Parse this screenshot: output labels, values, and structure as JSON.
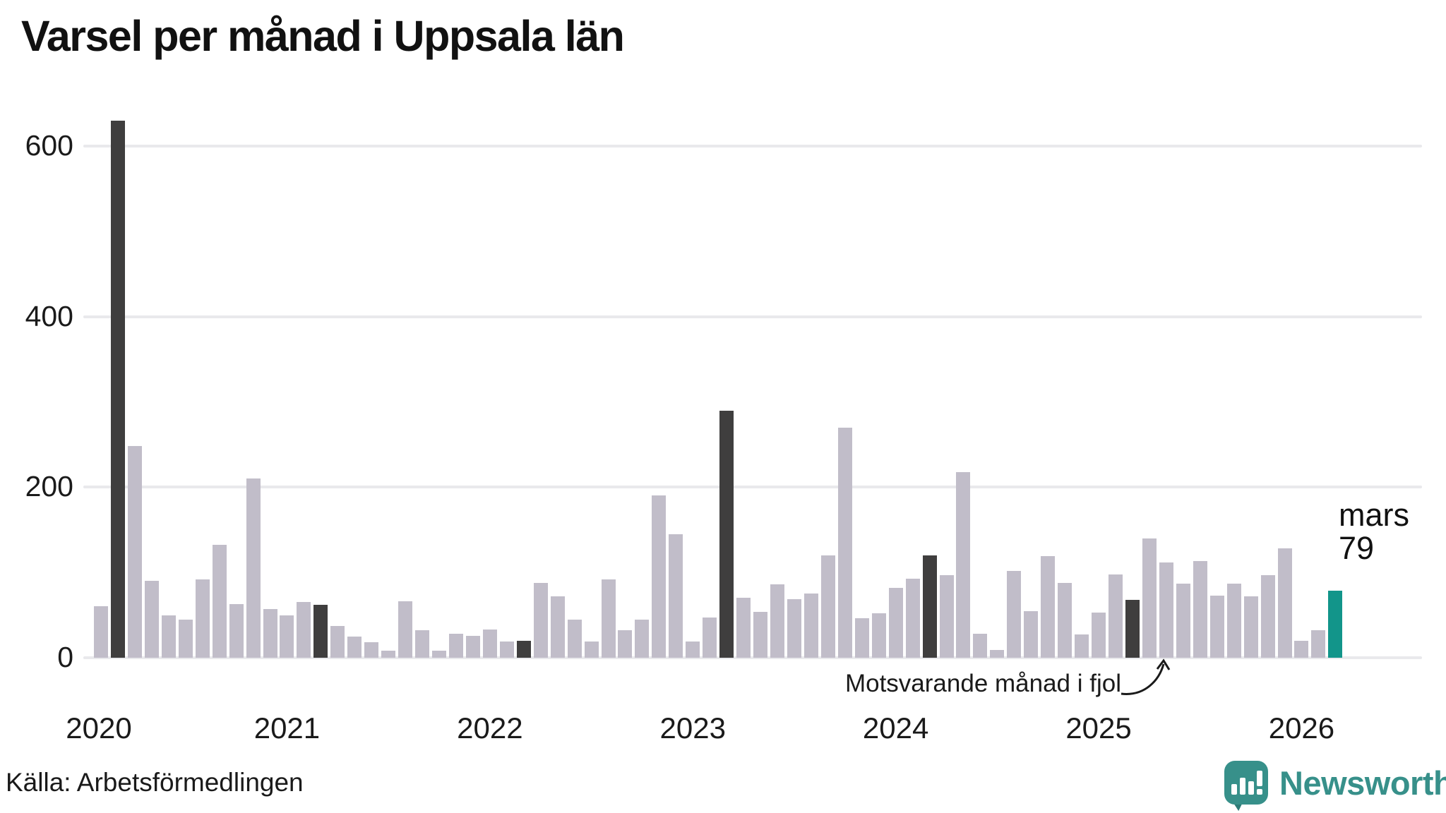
{
  "title": "Varsel per månad i Uppsala län",
  "annotation": {
    "text": "Motsvarande månad i fjol",
    "points_to": "mars 2025"
  },
  "current_point_label": {
    "line1": "mars",
    "line2": "79"
  },
  "footer": {
    "source": "Källa: Arbetsförmedlingen",
    "brand": "Newsworthy"
  },
  "colors": {
    "bar_default": "#c1bdc9",
    "bar_last_year_month": "#3f3e3e",
    "bar_current": "#12958a",
    "gridline": "#e9e9ec",
    "logo_teal": "#37908a",
    "text": "#1a1a1a"
  },
  "chart_data": {
    "type": "bar",
    "title": "Varsel per månad i Uppsala län",
    "xlabel": "",
    "ylabel": "",
    "ylim": [
      0,
      650
    ],
    "yticks": [
      0,
      200,
      400,
      600
    ],
    "grid": true,
    "legend_position": "none",
    "year_ticks": [
      "2020",
      "2021",
      "2022",
      "2023",
      "2024",
      "2025",
      "2026"
    ],
    "series_note": "role: base = ordinary month, fjol = same month previous years (mars), now = current month (mars 2026)",
    "points": [
      {
        "month": "feb 2020",
        "value": 60,
        "role": "base"
      },
      {
        "month": "mar 2020",
        "value": 630,
        "role": "fjol"
      },
      {
        "month": "apr 2020",
        "value": 248,
        "role": "base"
      },
      {
        "month": "maj 2020",
        "value": 90,
        "role": "base"
      },
      {
        "month": "jun 2020",
        "value": 50,
        "role": "base"
      },
      {
        "month": "jul 2020",
        "value": 45,
        "role": "base"
      },
      {
        "month": "aug 2020",
        "value": 92,
        "role": "base"
      },
      {
        "month": "sep 2020",
        "value": 132,
        "role": "base"
      },
      {
        "month": "okt 2020",
        "value": 63,
        "role": "base"
      },
      {
        "month": "nov 2020",
        "value": 210,
        "role": "base"
      },
      {
        "month": "dec 2020",
        "value": 57,
        "role": "base"
      },
      {
        "month": "jan 2021",
        "value": 50,
        "role": "base"
      },
      {
        "month": "feb 2021",
        "value": 65,
        "role": "base"
      },
      {
        "month": "mar 2021",
        "value": 62,
        "role": "fjol"
      },
      {
        "month": "apr 2021",
        "value": 37,
        "role": "base"
      },
      {
        "month": "maj 2021",
        "value": 25,
        "role": "base"
      },
      {
        "month": "jun 2021",
        "value": 18,
        "role": "base"
      },
      {
        "month": "jul 2021",
        "value": 8,
        "role": "base"
      },
      {
        "month": "aug 2021",
        "value": 66,
        "role": "base"
      },
      {
        "month": "sep 2021",
        "value": 32,
        "role": "base"
      },
      {
        "month": "okt 2021",
        "value": 8,
        "role": "base"
      },
      {
        "month": "nov 2021",
        "value": 28,
        "role": "base"
      },
      {
        "month": "dec 2021",
        "value": 26,
        "role": "base"
      },
      {
        "month": "jan 2022",
        "value": 33,
        "role": "base"
      },
      {
        "month": "feb 2022",
        "value": 19,
        "role": "base"
      },
      {
        "month": "mar 2022",
        "value": 20,
        "role": "fjol"
      },
      {
        "month": "apr 2022",
        "value": 88,
        "role": "base"
      },
      {
        "month": "maj 2022",
        "value": 72,
        "role": "base"
      },
      {
        "month": "jun 2022",
        "value": 45,
        "role": "base"
      },
      {
        "month": "jul 2022",
        "value": 19,
        "role": "base"
      },
      {
        "month": "aug 2022",
        "value": 92,
        "role": "base"
      },
      {
        "month": "sep 2022",
        "value": 32,
        "role": "base"
      },
      {
        "month": "okt 2022",
        "value": 45,
        "role": "base"
      },
      {
        "month": "nov 2022",
        "value": 190,
        "role": "base"
      },
      {
        "month": "dec 2022",
        "value": 145,
        "role": "base"
      },
      {
        "month": "jan 2023",
        "value": 19,
        "role": "base"
      },
      {
        "month": "feb 2023",
        "value": 47,
        "role": "base"
      },
      {
        "month": "mar 2023",
        "value": 290,
        "role": "fjol"
      },
      {
        "month": "apr 2023",
        "value": 70,
        "role": "base"
      },
      {
        "month": "maj 2023",
        "value": 54,
        "role": "base"
      },
      {
        "month": "jun 2023",
        "value": 86,
        "role": "base"
      },
      {
        "month": "jul 2023",
        "value": 69,
        "role": "base"
      },
      {
        "month": "aug 2023",
        "value": 75,
        "role": "base"
      },
      {
        "month": "sep 2023",
        "value": 120,
        "role": "base"
      },
      {
        "month": "okt 2023",
        "value": 270,
        "role": "base"
      },
      {
        "month": "nov 2023",
        "value": 46,
        "role": "base"
      },
      {
        "month": "dec 2023",
        "value": 52,
        "role": "base"
      },
      {
        "month": "jan 2024",
        "value": 82,
        "role": "base"
      },
      {
        "month": "feb 2024",
        "value": 93,
        "role": "base"
      },
      {
        "month": "mar 2024",
        "value": 120,
        "role": "fjol"
      },
      {
        "month": "apr 2024",
        "value": 97,
        "role": "base"
      },
      {
        "month": "maj 2024",
        "value": 218,
        "role": "base"
      },
      {
        "month": "jun 2024",
        "value": 28,
        "role": "base"
      },
      {
        "month": "jul 2024",
        "value": 9,
        "role": "base"
      },
      {
        "month": "aug 2024",
        "value": 102,
        "role": "base"
      },
      {
        "month": "sep 2024",
        "value": 55,
        "role": "base"
      },
      {
        "month": "okt 2024",
        "value": 119,
        "role": "base"
      },
      {
        "month": "nov 2024",
        "value": 88,
        "role": "base"
      },
      {
        "month": "dec 2024",
        "value": 27,
        "role": "base"
      },
      {
        "month": "jan 2025",
        "value": 53,
        "role": "base"
      },
      {
        "month": "feb 2025",
        "value": 98,
        "role": "base"
      },
      {
        "month": "mar 2025",
        "value": 68,
        "role": "fjol"
      },
      {
        "month": "apr 2025",
        "value": 140,
        "role": "base"
      },
      {
        "month": "maj 2025",
        "value": 112,
        "role": "base"
      },
      {
        "month": "jun 2025",
        "value": 87,
        "role": "base"
      },
      {
        "month": "jul 2025",
        "value": 113,
        "role": "base"
      },
      {
        "month": "aug 2025",
        "value": 73,
        "role": "base"
      },
      {
        "month": "sep 2025",
        "value": 87,
        "role": "base"
      },
      {
        "month": "okt 2025",
        "value": 72,
        "role": "base"
      },
      {
        "month": "nov 2025",
        "value": 97,
        "role": "base"
      },
      {
        "month": "dec 2025",
        "value": 128,
        "role": "base"
      },
      {
        "month": "jan 2026",
        "value": 20,
        "role": "base"
      },
      {
        "month": "feb 2026",
        "value": 32,
        "role": "base"
      },
      {
        "month": "mar 2026",
        "value": 79,
        "role": "now"
      }
    ]
  }
}
